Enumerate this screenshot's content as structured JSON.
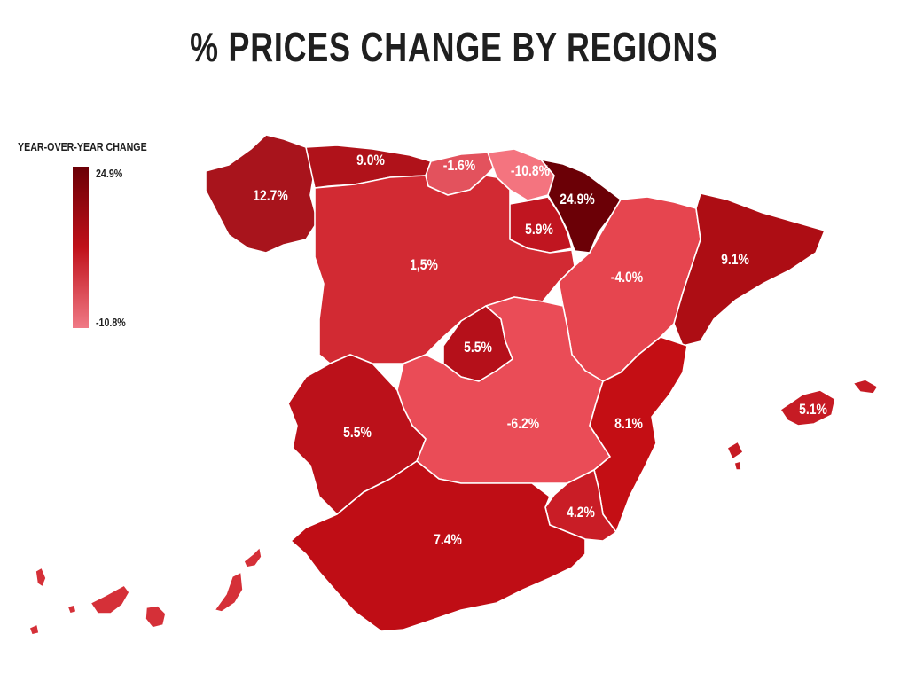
{
  "title": "% PRICES CHANGE BY REGIONS",
  "legend": {
    "title": "YEAR-OVER-YEAR CHANGE",
    "max_label": "24.9%",
    "min_label": "-10.8%",
    "color_high": "#6b0006",
    "color_mid": "#c0111a",
    "color_low": "#f07a86"
  },
  "regions": [
    {
      "id": "galicia",
      "label": "12.7%",
      "value": 12.7,
      "color": "#a8141c"
    },
    {
      "id": "asturias",
      "label": "9.0%",
      "value": 9.0,
      "color": "#b0121a"
    },
    {
      "id": "cantabria",
      "label": "-1.6%",
      "value": -1.6,
      "color": "#e3525d"
    },
    {
      "id": "pais-vasco",
      "label": "-10.8%",
      "value": -10.8,
      "color": "#f4747f"
    },
    {
      "id": "navarra",
      "label": "24.9%",
      "value": 24.9,
      "color": "#6b0006"
    },
    {
      "id": "la-rioja",
      "label": "5.9%",
      "value": 5.9,
      "color": "#c01520"
    },
    {
      "id": "castilla-leon",
      "label": "1,5%",
      "value": 1.5,
      "color": "#d22a33"
    },
    {
      "id": "aragon",
      "label": "-4.0%",
      "value": -4.0,
      "color": "#e6454f"
    },
    {
      "id": "cataluna",
      "label": "9.1%",
      "value": 9.1,
      "color": "#ad0d14"
    },
    {
      "id": "madrid",
      "label": "5.5%",
      "value": 5.5,
      "color": "#b5101a"
    },
    {
      "id": "castilla-la-mancha",
      "label": "-6.2%",
      "value": -6.2,
      "color": "#ea4c57"
    },
    {
      "id": "valencia",
      "label": "8.1%",
      "value": 8.1,
      "color": "#c40e14"
    },
    {
      "id": "extremadura",
      "label": "5.5%",
      "value": 5.5,
      "color": "#bb111a"
    },
    {
      "id": "murcia",
      "label": "4.2%",
      "value": 4.2,
      "color": "#c91d26"
    },
    {
      "id": "andalucia",
      "label": "7.4%",
      "value": 7.4,
      "color": "#bf0d15"
    },
    {
      "id": "baleares",
      "label": "5.1%",
      "value": 5.1,
      "color": "#c61b24"
    },
    {
      "id": "canarias",
      "label": "",
      "value": null,
      "color": "#d53038"
    }
  ]
}
